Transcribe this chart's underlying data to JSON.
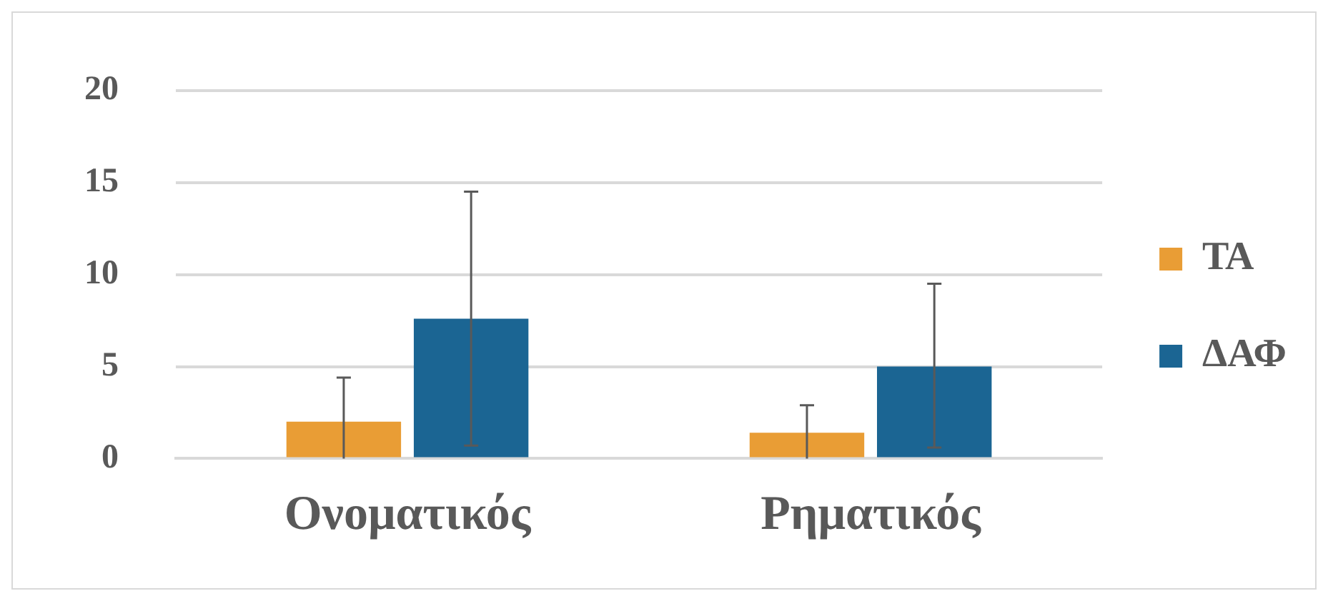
{
  "chart_data": {
    "type": "bar",
    "categories": [
      "Ονοματικός",
      "Ρηματικός"
    ],
    "series": [
      {
        "name": "ΤΑ",
        "color": "#e99d35",
        "values": [
          2.0,
          1.4
        ],
        "errors": [
          [
            0,
            4.4
          ],
          [
            0,
            2.9
          ]
        ]
      },
      {
        "name": "ΔΑΦ",
        "color": "#1b6593",
        "values": [
          7.6,
          5.0
        ],
        "errors": [
          [
            0.7,
            14.5
          ],
          [
            0.6,
            9.5
          ]
        ]
      }
    ],
    "ylim": [
      0,
      20
    ],
    "yticks": [
      0,
      5,
      10,
      15,
      20
    ],
    "grid": "y",
    "legend": "right"
  }
}
